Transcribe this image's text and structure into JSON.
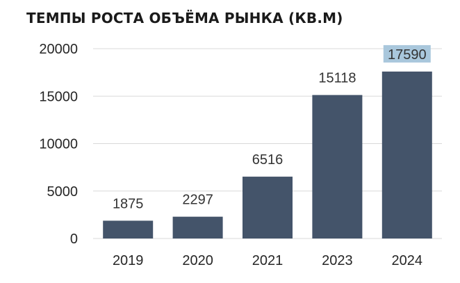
{
  "chart_data": {
    "type": "bar",
    "title": "ТЕМПЫ РОСТА ОБЪЁМА РЫНКА (КВ.М)",
    "categories": [
      "2019",
      "2020",
      "2021",
      "2023",
      "2024"
    ],
    "values": [
      1875,
      2297,
      6516,
      15118,
      17590
    ],
    "data_labels": [
      "1875",
      "2297",
      "6516",
      "15118",
      "17590"
    ],
    "y_ticks": [
      0,
      5000,
      10000,
      15000,
      20000
    ],
    "ylim": [
      0,
      20000
    ],
    "xlabel": "",
    "ylabel": "",
    "grid": true,
    "legend": "none",
    "colors": {
      "bar": "#44546a",
      "grid": "#d9d9d9",
      "highlight": "#a9c7dc"
    },
    "highlighted_label_index": 4
  }
}
